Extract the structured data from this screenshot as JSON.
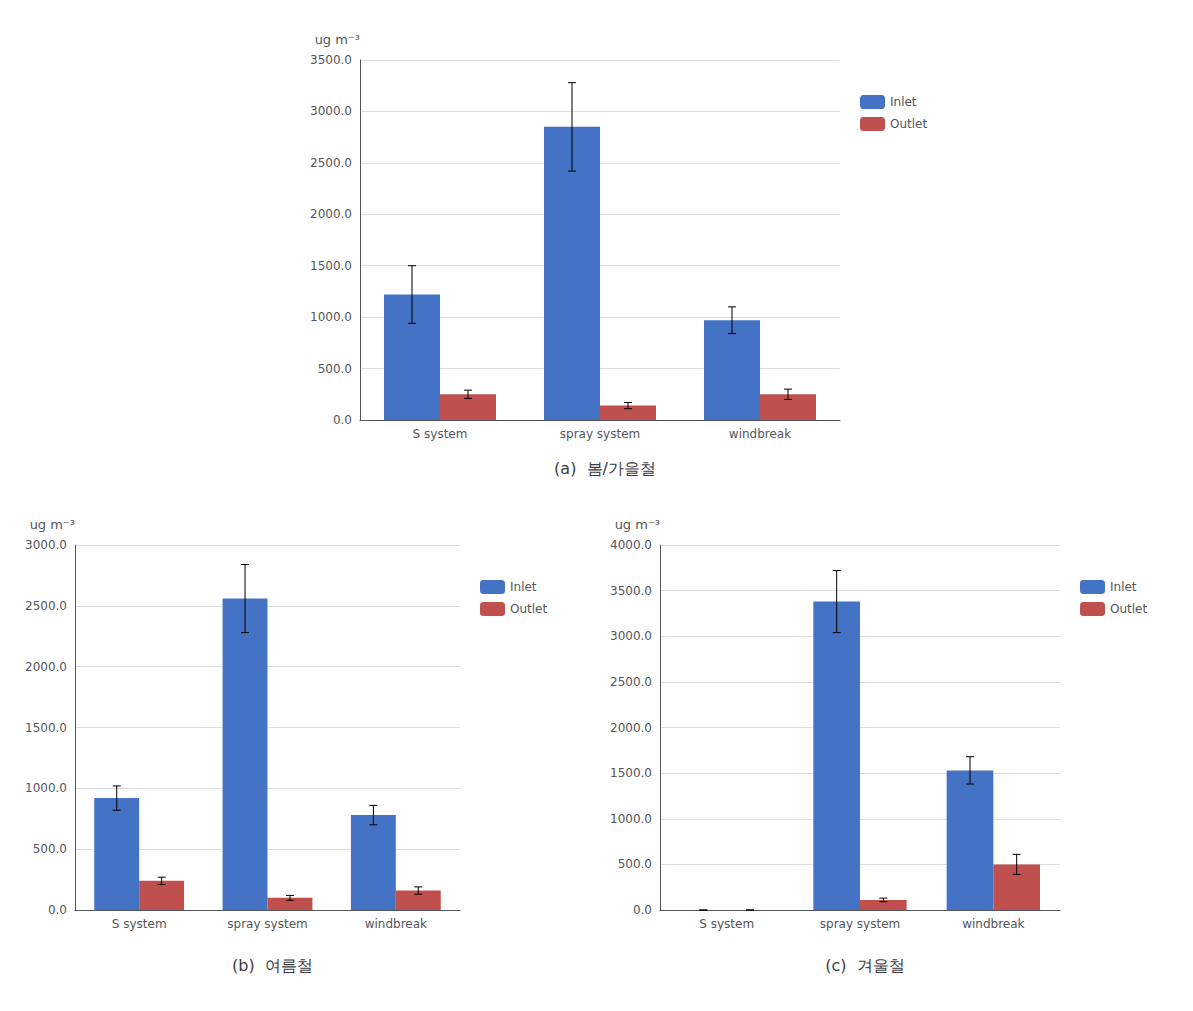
{
  "chart_data": [
    {
      "type": "bar",
      "title": "(a)  봄/가을철",
      "categories": [
        "S system",
        "spray system",
        "windbreak"
      ],
      "series": [
        {
          "name": "Inlet",
          "color": "#4472C4",
          "values": [
            1220,
            2850,
            970
          ],
          "errors": [
            280,
            430,
            130
          ]
        },
        {
          "name": "Outlet",
          "color": "#C0504D",
          "values": [
            250,
            140,
            250
          ],
          "errors": [
            40,
            30,
            50
          ]
        }
      ],
      "ylim": [
        0,
        3500
      ],
      "yticks": [
        {
          "value": 0,
          "label": "0.0"
        },
        {
          "value": 500,
          "label": "500.0"
        },
        {
          "value": 1000,
          "label": "1000.0"
        },
        {
          "value": 1500,
          "label": "1500.0"
        },
        {
          "value": 2000,
          "label": "2000.0"
        },
        {
          "value": 2500,
          "label": "2500.0"
        },
        {
          "value": 3000,
          "label": "3000.0"
        },
        {
          "value": 3500,
          "label": "3500.0"
        }
      ],
      "ylabel": "ug m⁻³",
      "grid": true,
      "legend": "right"
    },
    {
      "type": "bar",
      "title": "(b)  여름철",
      "categories": [
        "S system",
        "spray system",
        "windbreak"
      ],
      "series": [
        {
          "name": "Inlet",
          "color": "#4472C4",
          "values": [
            920,
            2560,
            780
          ],
          "errors": [
            100,
            280,
            80
          ]
        },
        {
          "name": "Outlet",
          "color": "#C0504D",
          "values": [
            240,
            100,
            160
          ],
          "errors": [
            30,
            20,
            30
          ]
        }
      ],
      "ylim": [
        0,
        3000
      ],
      "yticks": [
        {
          "value": 0,
          "label": "0.0"
        },
        {
          "value": 500,
          "label": "500.0"
        },
        {
          "value": 1000,
          "label": "1000.0"
        },
        {
          "value": 1500,
          "label": "1500.0"
        },
        {
          "value": 2000,
          "label": "2000.0"
        },
        {
          "value": 2500,
          "label": "2500.0"
        },
        {
          "value": 3000,
          "label": "3000.0"
        }
      ],
      "ylabel": "ug m⁻³",
      "grid": true,
      "legend": "right"
    },
    {
      "type": "bar",
      "title": "(c)  겨울철",
      "categories": [
        "S system",
        "spray system",
        "windbreak"
      ],
      "series": [
        {
          "name": "Inlet",
          "color": "#4472C4",
          "values": [
            0,
            3380,
            1530
          ],
          "errors": [
            0,
            340,
            150
          ]
        },
        {
          "name": "Outlet",
          "color": "#C0504D",
          "values": [
            0,
            110,
            500
          ],
          "errors": [
            0,
            20,
            110
          ]
        }
      ],
      "ylim": [
        0,
        4000
      ],
      "yticks": [
        {
          "value": 0,
          "label": "0.0"
        },
        {
          "value": 500,
          "label": "500.0"
        },
        {
          "value": 1000,
          "label": "1000.0"
        },
        {
          "value": 1500,
          "label": "1500.0"
        },
        {
          "value": 2000,
          "label": "2000.0"
        },
        {
          "value": 2500,
          "label": "2500.0"
        },
        {
          "value": 3000,
          "label": "3000.0"
        },
        {
          "value": 3500,
          "label": "3500.0"
        },
        {
          "value": 4000,
          "label": "4000.0"
        }
      ],
      "ylabel": "ug m⁻³",
      "grid": true,
      "legend": "right"
    }
  ]
}
